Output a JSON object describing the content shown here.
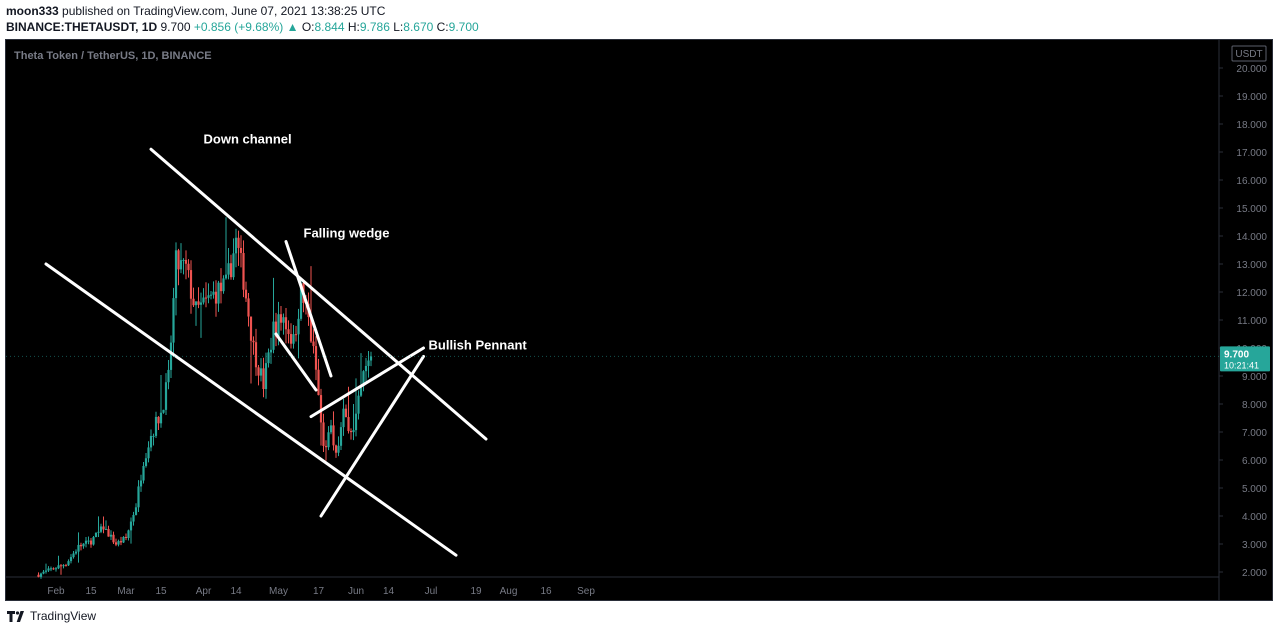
{
  "header": {
    "author": "moon333",
    "published_text": "published on TradingView.com, June 07, 2021 13:38:25 UTC",
    "symbol": "BINANCE:THETAUSDT, 1D",
    "last": "9.700",
    "change": "+0.856 (+9.68%)",
    "o_label": "O:",
    "o": "8.844",
    "h_label": "H:",
    "h": "9.786",
    "l_label": "L:",
    "l": "8.670",
    "c_label": "C:",
    "c": "9.700"
  },
  "footer": {
    "brand": "TradingView"
  },
  "colors": {
    "up": "#26a69a",
    "down": "#ef5350",
    "bg": "#000000",
    "drawing": "#ffffff",
    "axis_text": "#787b86",
    "price_tag": "#26a69a"
  },
  "chart_data": {
    "type": "candlestick",
    "title": "Theta Token / TetherUS, 1D, BINANCE",
    "currency": "USDT",
    "y_ticks": [
      "2.000",
      "3.000",
      "4.000",
      "5.000",
      "6.000",
      "7.000",
      "8.000",
      "9.000",
      "10.000",
      "11.000",
      "12.000",
      "13.000",
      "14.000",
      "15.000",
      "16.000",
      "17.000",
      "18.000",
      "19.000",
      "20.000"
    ],
    "ylim": [
      1.6,
      20.3
    ],
    "x_ticks": [
      {
        "label": "Feb",
        "date": "2021-02-01"
      },
      {
        "label": "15",
        "date": "2021-02-15"
      },
      {
        "label": "Mar",
        "date": "2021-03-01"
      },
      {
        "label": "15",
        "date": "2021-03-15"
      },
      {
        "label": "Apr",
        "date": "2021-04-01"
      },
      {
        "label": "14",
        "date": "2021-04-14"
      },
      {
        "label": "May",
        "date": "2021-05-01"
      },
      {
        "label": "17",
        "date": "2021-05-17"
      },
      {
        "label": "Jun",
        "date": "2021-06-01"
      },
      {
        "label": "14",
        "date": "2021-06-14"
      },
      {
        "label": "Jul",
        "date": "2021-07-01"
      },
      {
        "label": "19",
        "date": "2021-07-19"
      },
      {
        "label": "Aug",
        "date": "2021-08-01"
      },
      {
        "label": "16",
        "date": "2021-08-16"
      },
      {
        "label": "Sep",
        "date": "2021-09-01"
      }
    ],
    "last_price": "9.700",
    "countdown": "10:21:41",
    "close_points": [
      [
        "2021-01-25",
        1.9
      ],
      [
        "2021-01-30",
        2.1
      ],
      [
        "2021-02-05",
        2.3
      ],
      [
        "2021-02-10",
        2.9
      ],
      [
        "2021-02-15",
        3.1
      ],
      [
        "2021-02-20",
        3.6
      ],
      [
        "2021-02-25",
        3.0
      ],
      [
        "2021-03-01",
        3.2
      ],
      [
        "2021-03-05",
        4.4
      ],
      [
        "2021-03-08",
        6.0
      ],
      [
        "2021-03-11",
        6.9
      ],
      [
        "2021-03-15",
        7.7
      ],
      [
        "2021-03-18",
        8.9
      ],
      [
        "2021-03-21",
        13.0
      ],
      [
        "2021-03-25",
        12.8
      ],
      [
        "2021-03-29",
        11.3
      ],
      [
        "2021-04-02",
        11.6
      ],
      [
        "2021-04-06",
        12.0
      ],
      [
        "2021-04-10",
        12.2
      ],
      [
        "2021-04-14",
        13.8
      ],
      [
        "2021-04-17",
        12.5
      ],
      [
        "2021-04-21",
        10.0
      ],
      [
        "2021-04-25",
        8.7
      ],
      [
        "2021-04-29",
        10.7
      ],
      [
        "2021-05-03",
        11.1
      ],
      [
        "2021-05-07",
        10.2
      ],
      [
        "2021-05-10",
        12.0
      ],
      [
        "2021-05-13",
        11.0
      ],
      [
        "2021-05-16",
        9.2
      ],
      [
        "2021-05-19",
        6.4
      ],
      [
        "2021-05-22",
        7.0
      ],
      [
        "2021-05-24",
        6.1
      ],
      [
        "2021-05-27",
        7.6
      ],
      [
        "2021-05-31",
        7.0
      ],
      [
        "2021-06-04",
        9.0
      ],
      [
        "2021-06-07",
        9.7
      ]
    ],
    "annotations": [
      {
        "text": "Down channel",
        "date": "2021-04-01",
        "price": 17.3
      },
      {
        "text": "Falling wedge",
        "date": "2021-05-11",
        "price": 13.95
      },
      {
        "text": "Bullish Pennant",
        "date": "2021-06-30",
        "price": 9.95
      }
    ],
    "trendlines": [
      {
        "name": "down-channel-upper",
        "from": [
          "2021-03-11",
          17.1
        ],
        "to": [
          "2021-07-23",
          6.75
        ]
      },
      {
        "name": "down-channel-lower",
        "from": [
          "2021-01-28",
          13.0
        ],
        "to": [
          "2021-07-11",
          2.6
        ]
      },
      {
        "name": "wedge-upper",
        "from": [
          "2021-05-04",
          13.8
        ],
        "to": [
          "2021-05-22",
          9.0
        ]
      },
      {
        "name": "wedge-lower",
        "from": [
          "2021-04-30",
          10.5
        ],
        "to": [
          "2021-05-16",
          8.5
        ]
      },
      {
        "name": "pennant-upper",
        "from": [
          "2021-05-14",
          7.55
        ],
        "to": [
          "2021-06-28",
          10.0
        ]
      },
      {
        "name": "pennant-lower",
        "from": [
          "2021-05-18",
          4.0
        ],
        "to": [
          "2021-06-28",
          9.7
        ]
      }
    ]
  }
}
